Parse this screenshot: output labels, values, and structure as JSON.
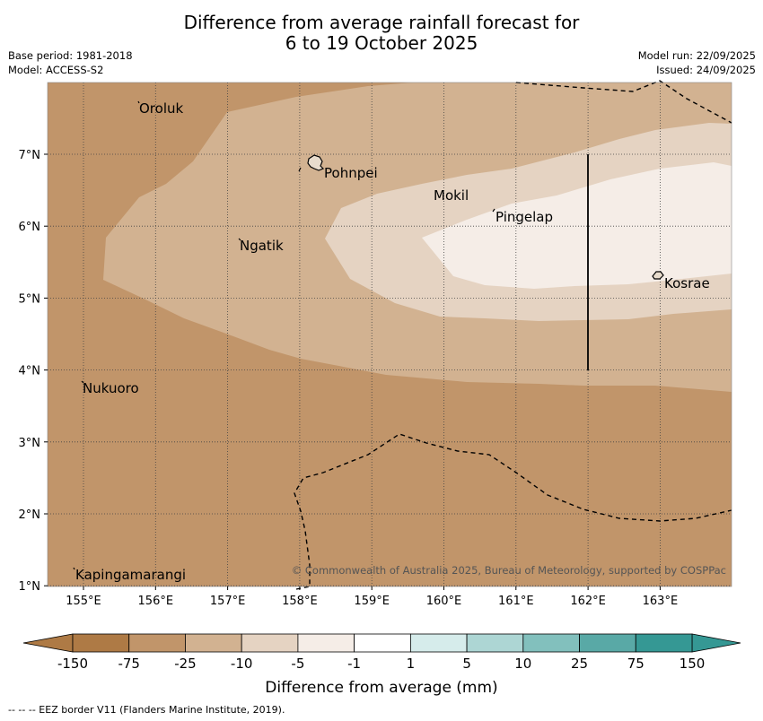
{
  "title": {
    "line1": "Difference from average rainfall forecast for",
    "line2": "6 to 19 October 2025"
  },
  "meta": {
    "base_period": "Base period: 1981-2018",
    "model": "Model: ACCESS-S2",
    "model_run": "Model run: 22/09/2025",
    "issued": "Issued: 24/09/2025"
  },
  "map": {
    "lon_labels": [
      "155°E",
      "156°E",
      "157°E",
      "158°E",
      "159°E",
      "160°E",
      "161°E",
      "162°E",
      "163°E"
    ],
    "lat_labels": [
      "7°N",
      "6°N",
      "5°N",
      "4°N",
      "3°N",
      "2°N",
      "1°N"
    ],
    "places": [
      {
        "name": "Oroluk"
      },
      {
        "name": "Pohnpei"
      },
      {
        "name": "Mokil"
      },
      {
        "name": "Pingelap"
      },
      {
        "name": "Ngatik"
      },
      {
        "name": "Kosrae"
      },
      {
        "name": "Nukuoro"
      },
      {
        "name": "Kapingamarangi"
      }
    ],
    "copyright": "© Commonwealth of Australia 2025, Bureau of Meteorology, supported by COSPPac"
  },
  "legend": {
    "ticks": [
      "-150",
      "-75",
      "-25",
      "-10",
      "-5",
      "-1",
      "1",
      "5",
      "10",
      "25",
      "75",
      "150"
    ],
    "colors": [
      "#ae7a45",
      "#c1956a",
      "#d2b291",
      "#e5d3c2",
      "#f5ede7",
      "#ffffff",
      "#d6eceb",
      "#add6d4",
      "#82c0bd",
      "#59a9a6",
      "#359894"
    ],
    "label": "Difference from average (mm)"
  },
  "footnote": "--  --  -- EEZ border V11 (Flanders Marine Institute, 2019)."
}
